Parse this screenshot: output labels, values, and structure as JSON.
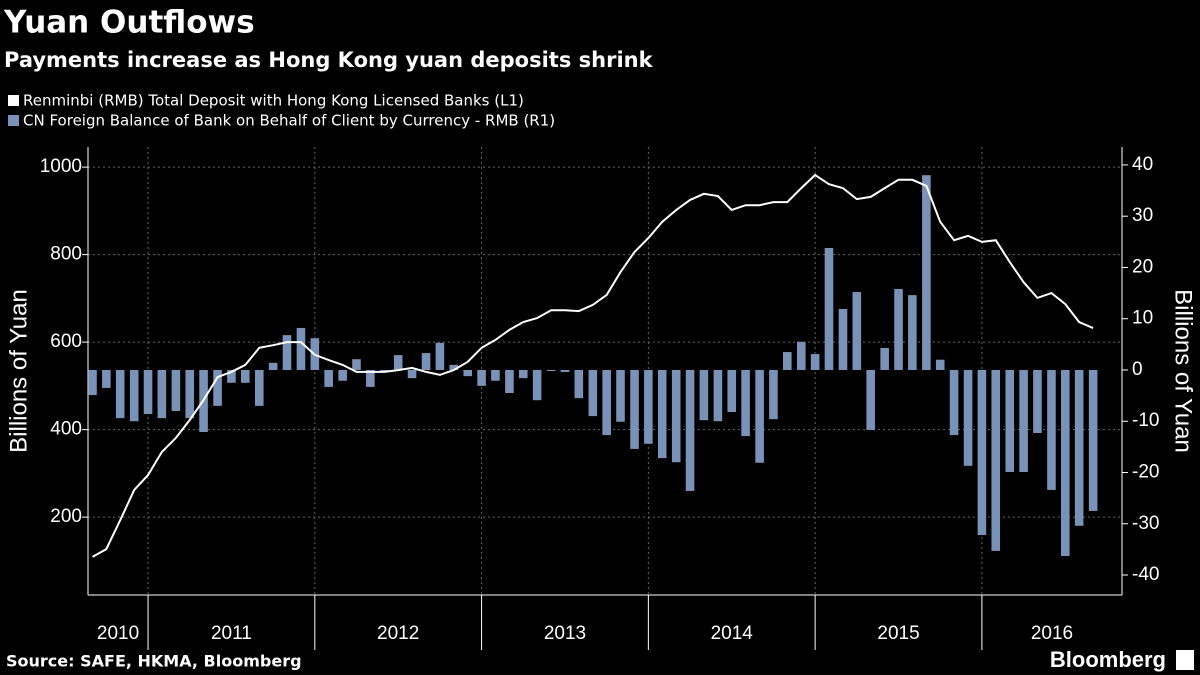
{
  "chart_data": {
    "type": "combo",
    "title": "Yuan Outflows",
    "subtitle": "Payments increase as Hong Kong yuan deposits shrink",
    "ylabel": "Billions of Yuan",
    "y2label": "Billions of Yuan",
    "source": "Source: SAFE, HKMA, Bloomberg",
    "brand": "Bloomberg",
    "x": [
      2010.667,
      2010.75,
      2010.833,
      2010.917,
      2011.0,
      2011.083,
      2011.167,
      2011.25,
      2011.333,
      2011.417,
      2011.5,
      2011.583,
      2011.667,
      2011.75,
      2011.833,
      2011.917,
      2012.0,
      2012.083,
      2012.167,
      2012.25,
      2012.333,
      2012.417,
      2012.5,
      2012.583,
      2012.667,
      2012.75,
      2012.833,
      2012.917,
      2013.0,
      2013.083,
      2013.167,
      2013.25,
      2013.333,
      2013.417,
      2013.5,
      2013.583,
      2013.667,
      2013.75,
      2013.833,
      2013.917,
      2014.0,
      2014.083,
      2014.167,
      2014.25,
      2014.333,
      2014.417,
      2014.5,
      2014.583,
      2014.667,
      2014.75,
      2014.833,
      2014.917,
      2015.0,
      2015.083,
      2015.167,
      2015.25,
      2015.333,
      2015.417,
      2015.5,
      2015.583,
      2015.667,
      2015.75,
      2015.833,
      2015.917,
      2016.0,
      2016.083,
      2016.167,
      2016.25,
      2016.333,
      2016.417,
      2016.5,
      2016.583,
      2016.667
    ],
    "xlim": [
      2010.64,
      2016.84
    ],
    "xticks": [
      2010,
      2011,
      2012,
      2013,
      2014,
      2015,
      2016
    ],
    "ylim": [
      22,
      1046
    ],
    "yticks": [
      200,
      400,
      600,
      800,
      1000
    ],
    "y2lim": [
      -43.9,
      43.5
    ],
    "y2ticks": [
      -40,
      -30,
      -20,
      -10,
      0,
      10,
      20,
      30,
      40
    ],
    "grid": true,
    "series": [
      {
        "name": "Renminbi (RMB) Total Deposit with Hong Kong Licensed Banks  (L1)",
        "type": "line",
        "axis": "y",
        "color": "#ffffff",
        "values": [
          109,
          127,
          193,
          262,
          296,
          349,
          381,
          422,
          468,
          520,
          532,
          548,
          587,
          593,
          600,
          600,
          571,
          559,
          548,
          532,
          532,
          532,
          536,
          541,
          532,
          525,
          536,
          555,
          587,
          605,
          628,
          646,
          655,
          673,
          673,
          671,
          685,
          708,
          760,
          806,
          838,
          875,
          902,
          925,
          939,
          934,
          902,
          913,
          913,
          920,
          920,
          952,
          982,
          961,
          952,
          927,
          932,
          952,
          971,
          971,
          957,
          875,
          833,
          843,
          829,
          833,
          783,
          737,
          701,
          712,
          687,
          646,
          632
        ]
      },
      {
        "name": "CN Foreign Balance of Bank on Behalf of Client by Currency - RMB  (R1)",
        "type": "bar",
        "axis": "y2",
        "color": "#7b92b8",
        "values": [
          -4.9,
          -3.5,
          -9.4,
          -10,
          -8.6,
          -9.4,
          -8,
          -9.4,
          -12.1,
          -7,
          -2.5,
          -2.5,
          -7,
          1.4,
          6.8,
          8.2,
          6.2,
          -3.3,
          -2.1,
          2.1,
          -3.3,
          -0.3,
          2.9,
          -1.6,
          3.3,
          5.3,
          1,
          -1.2,
          -3.1,
          -2.1,
          -4.5,
          -1.6,
          -5.9,
          -0.2,
          -0.4,
          -5.5,
          -9,
          -12.7,
          -10.1,
          -15.4,
          -14.4,
          -17.2,
          -18,
          -23.6,
          -9.8,
          -10,
          -8.2,
          -12.9,
          -18.1,
          -9.6,
          3.5,
          5.5,
          3.1,
          23.8,
          11.9,
          15.2,
          -11.7,
          4.3,
          15.8,
          14.6,
          38,
          2,
          -12.7,
          -18.7,
          -32.2,
          -35.3,
          -19.9,
          -19.9,
          -12.3,
          -23.4,
          -36.3,
          -30.4,
          -27.5
        ]
      }
    ]
  }
}
